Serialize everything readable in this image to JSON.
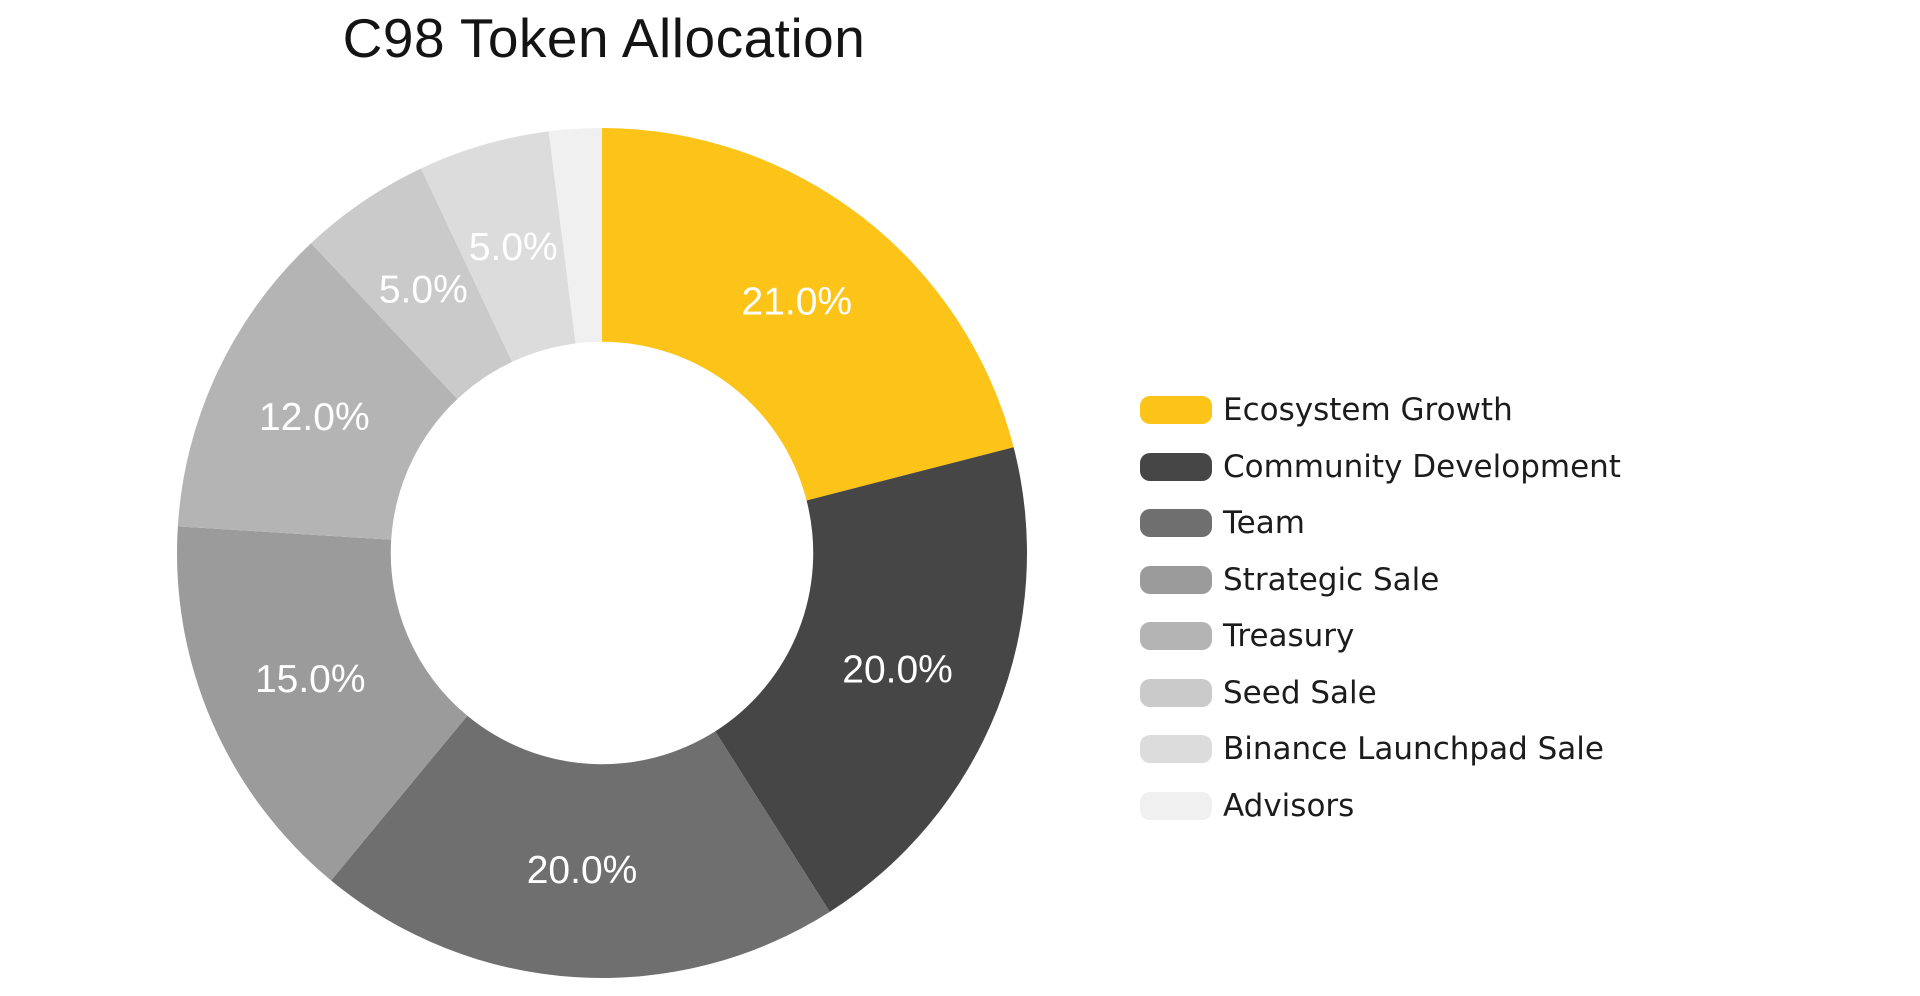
{
  "title": "C98 Token Allocation",
  "background_color": "#FFFFFF",
  "accent_color": "#FCC419",
  "chart_data": {
    "type": "pie",
    "variant": "donut",
    "title": "C98 Token Allocation",
    "unit": "%",
    "categories": [
      "Ecosystem Growth",
      "Community Development",
      "Team",
      "Strategic Sale",
      "Treasury",
      "Seed Sale",
      "Binance Launchpad Sale",
      "Advisors"
    ],
    "values": [
      21.0,
      20.0,
      20.0,
      15.0,
      12.0,
      5.0,
      5.0,
      2.0
    ],
    "pct_labels": [
      "21.0%",
      "20.0%",
      "20.0%",
      "15.0%",
      "12.0%",
      "5.0%",
      "5.0%",
      ""
    ],
    "colors": [
      "#FCC419",
      "#464646",
      "#6F6F6F",
      "#9B9B9B",
      "#B4B4B4",
      "#CACACA",
      "#DCDCDC",
      "#F0F0F0"
    ],
    "start_angle_deg": 0,
    "direction": "clockwise",
    "outer_radius_px": 425,
    "inner_radius_ratio": 0.497,
    "label_radius_ratio": 0.748,
    "label_color": "#FFFFFF",
    "grid": false,
    "legend_position": "right"
  }
}
